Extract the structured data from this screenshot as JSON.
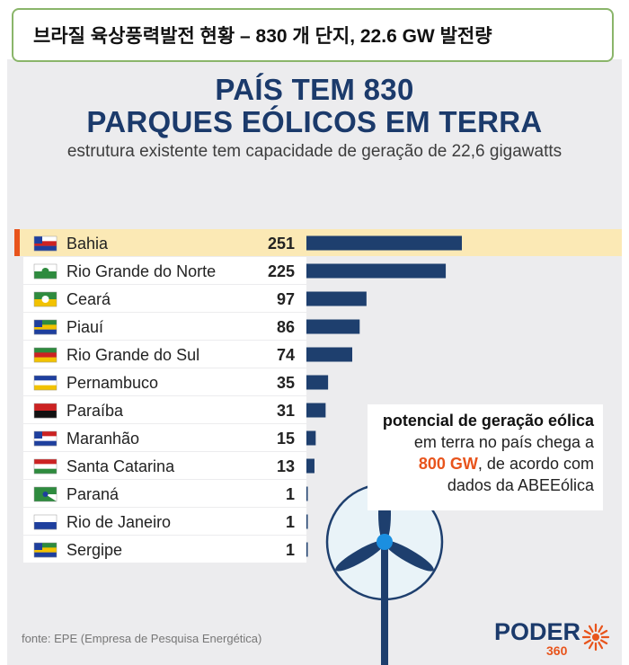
{
  "caption": "브라질 육상풍력발전 현황 – 830 개 단지, 22.6 GW 발전량",
  "infographic": {
    "title_line1": "PAÍS TEM 830",
    "title_line2": "PARQUES EÓLICOS EM TERRA",
    "subtitle": "estrutura existente tem capacidade de geração de 22,6 gigawatts",
    "callout": {
      "line1": "potencial de geração eólica",
      "line2": "em terra no país chega a",
      "highlight": "800 GW",
      "line3_rest": ", de acordo com",
      "line4": "dados da ABEEólica"
    },
    "source": "fonte: EPE (Empresa de Pesquisa Energética)",
    "logo": {
      "text": "PODER",
      "number": "360"
    }
  },
  "colors": {
    "title": "#1b3a6b",
    "bar": "#1e3f6e",
    "highlight_row": "#fbe9b5",
    "highlight_marker": "#e8541c",
    "accent": "#e8541c"
  },
  "chart_data": {
    "type": "bar",
    "orientation": "horizontal",
    "categories": [
      "Bahia",
      "Rio Grande do Norte",
      "Ceará",
      "Piauí",
      "Rio Grande do Sul",
      "Pernambuco",
      "Paraíba",
      "Maranhão",
      "Santa Catarina",
      "Paraná",
      "Rio de Janeiro",
      "Sergipe"
    ],
    "values": [
      251,
      225,
      97,
      86,
      74,
      35,
      31,
      15,
      13,
      1,
      1,
      1
    ],
    "highlighted": "Bahia",
    "flag_icons": [
      "bahia-flag-icon",
      "rio-grande-do-norte-flag-icon",
      "ceara-flag-icon",
      "piaui-flag-icon",
      "rio-grande-do-sul-flag-icon",
      "pernambuco-flag-icon",
      "paraiba-flag-icon",
      "maranhao-flag-icon",
      "santa-catarina-flag-icon",
      "parana-flag-icon",
      "rio-de-janeiro-flag-icon",
      "sergipe-flag-icon"
    ],
    "xlim": [
      0,
      251
    ],
    "grid": false
  }
}
